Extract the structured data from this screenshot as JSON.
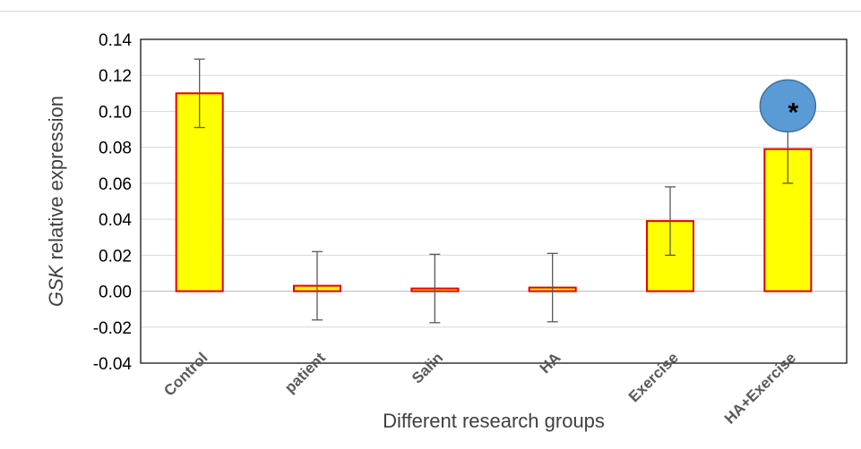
{
  "chart_data": {
    "type": "bar",
    "title": "",
    "xlabel": "Different research groups",
    "ylabel_italic": "GSK",
    "ylabel_rest": " relative expression",
    "ylim": [
      -0.04,
      0.14
    ],
    "ytick_step": 0.02,
    "yticks": [
      "-0.04",
      "-0.02",
      "0.00",
      "0.02",
      "0.04",
      "0.06",
      "0.08",
      "0.10",
      "0.12",
      "0.14"
    ],
    "categories": [
      "Control",
      "patient",
      "Salin",
      "HA",
      "Exercise",
      "HA+Exercise"
    ],
    "values": [
      0.11,
      0.003,
      0.0015,
      0.002,
      0.039,
      0.079
    ],
    "error": [
      0.019,
      0.019,
      0.019,
      0.019,
      0.019,
      0.019
    ],
    "grid": true,
    "legend": "none",
    "bar_fill": "#ffff00",
    "bar_edge": "#e00000",
    "annotation": {
      "category": "HA+Exercise",
      "text": "*",
      "marker_color": "#5b9bd5",
      "marker_edge": "#41719c",
      "y": 0.103
    }
  }
}
